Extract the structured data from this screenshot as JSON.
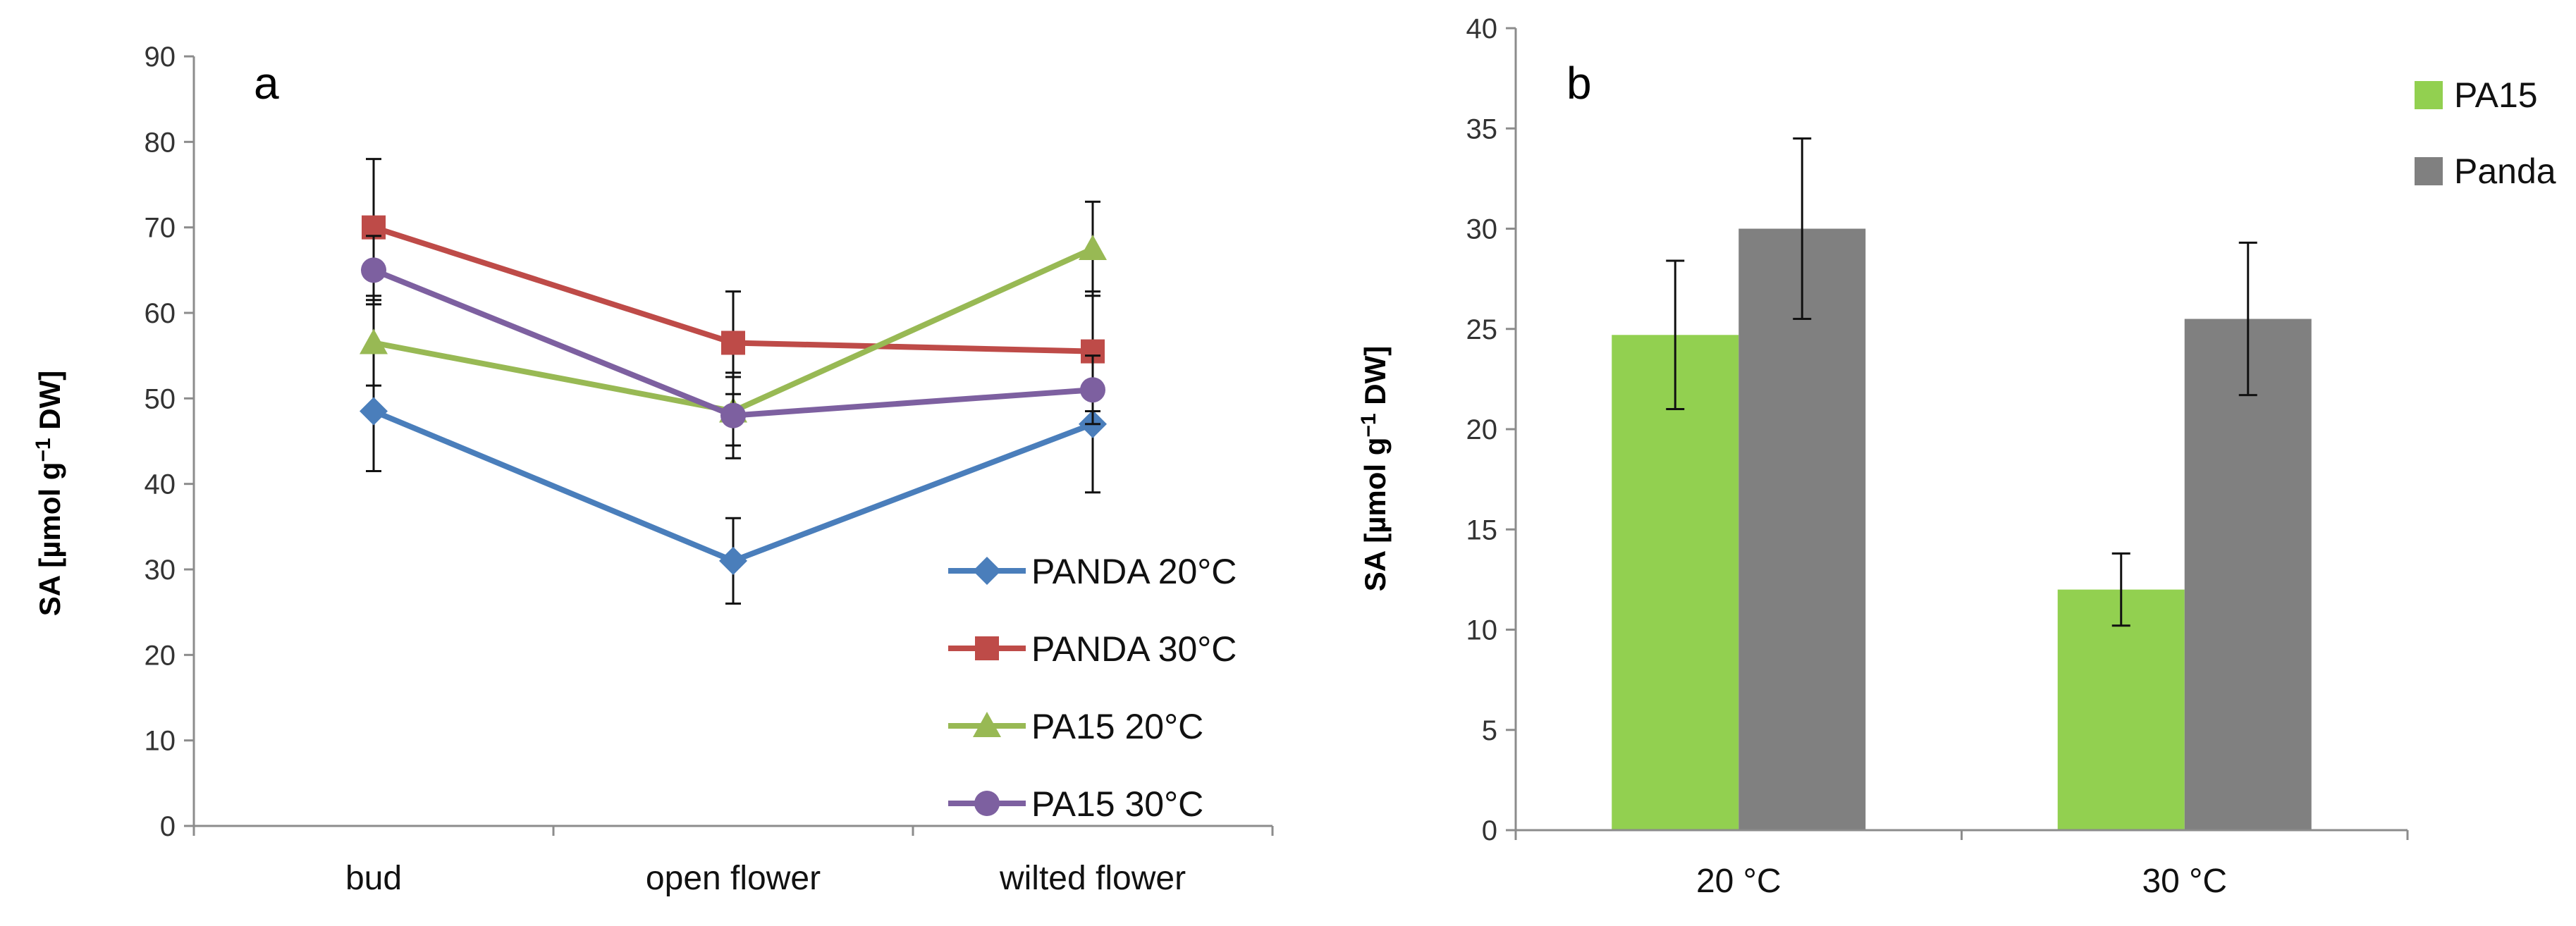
{
  "chart_data": [
    {
      "type": "line",
      "panel_label": "a",
      "ylabel_prefix": "SA [µmol g",
      "ylabel_sup": "−1",
      "ylabel_suffix": " DW]",
      "ylim": [
        0,
        90
      ],
      "yticks": [
        0,
        10,
        20,
        30,
        40,
        50,
        60,
        70,
        80,
        90
      ],
      "categories": [
        "bud",
        "open flower",
        "wilted flower"
      ],
      "legend_position": "bottom-right",
      "series": [
        {
          "name": "PANDA 20°C",
          "color": "#4a7ebb",
          "marker": "diamond",
          "values": [
            48.5,
            31,
            47
          ],
          "errors": [
            7,
            5,
            8
          ]
        },
        {
          "name": "PANDA 30°C",
          "color": "#be4b48",
          "marker": "square",
          "values": [
            70,
            56.5,
            55.5
          ],
          "errors": [
            8,
            6,
            7
          ]
        },
        {
          "name": "PA15 20°C",
          "color": "#98b954",
          "marker": "triangle",
          "values": [
            56.5,
            48.5,
            67.5
          ],
          "errors": [
            5,
            4,
            5.5
          ]
        },
        {
          "name": "PA15 30°C",
          "color": "#7d60a0",
          "marker": "circle",
          "values": [
            65,
            48,
            51
          ],
          "errors": [
            4,
            5,
            4
          ]
        }
      ]
    },
    {
      "type": "bar",
      "panel_label": "b",
      "ylabel_prefix": "SA [µmol g",
      "ylabel_sup": "−1",
      "ylabel_suffix": " DW]",
      "ylim": [
        0,
        40
      ],
      "yticks": [
        0,
        5,
        10,
        15,
        20,
        25,
        30,
        35,
        40
      ],
      "categories": [
        "20 °C",
        "30 °C"
      ],
      "legend_position": "top-right",
      "series": [
        {
          "name": "PA15",
          "color": "#92d050",
          "values": [
            24.7,
            12
          ],
          "errors": [
            3.7,
            1.8
          ]
        },
        {
          "name": "Panda",
          "color": "#808080",
          "values": [
            30,
            25.5
          ],
          "errors": [
            4.5,
            3.8
          ]
        }
      ]
    }
  ]
}
